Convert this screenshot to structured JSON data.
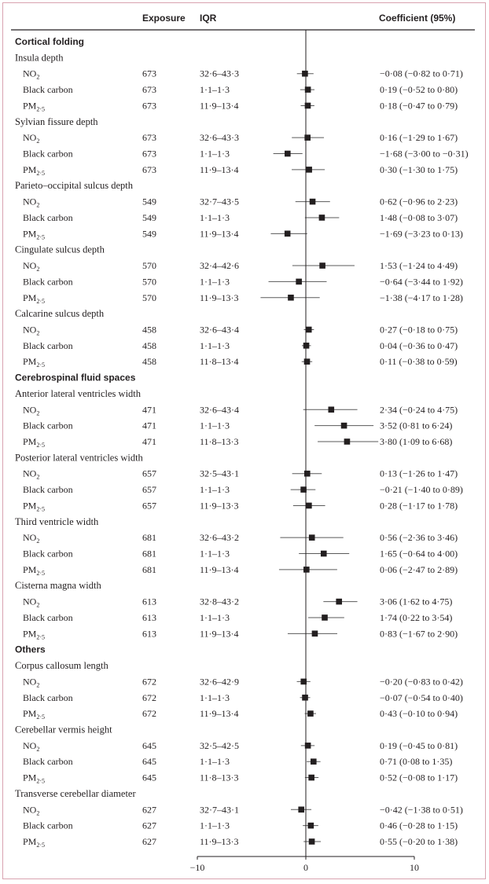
{
  "chart_data": {
    "type": "forest",
    "columns": {
      "exposure": "Exposure",
      "iqr": "IQR",
      "coefficient": "Coefficient (95%)"
    },
    "xlim": [
      -10,
      10
    ],
    "x_ticks": [
      "−10",
      "0",
      "10"
    ],
    "x_tick_values": [
      -10,
      0,
      10
    ],
    "pollutant_labels": {
      "no2": [
        "NO",
        "2"
      ],
      "bc": [
        "Black carbon",
        ""
      ],
      "pm": [
        "PM",
        "2·5"
      ]
    },
    "sections": [
      {
        "title": "Cortical folding",
        "groups": [
          {
            "name": "Insula depth",
            "rows": [
              {
                "p": "no2",
                "n": "673",
                "iqr": "32·6–43·3",
                "est": -0.08,
                "lo": -0.82,
                "hi": 0.71,
                "ci": "−0·08 (−0·82 to 0·71)"
              },
              {
                "p": "bc",
                "n": "673",
                "iqr": "1·1–1·3",
                "est": 0.19,
                "lo": -0.52,
                "hi": 0.8,
                "ci": "0·19 (−0·52 to 0·80)"
              },
              {
                "p": "pm",
                "n": "673",
                "iqr": "11·9–13·4",
                "est": 0.18,
                "lo": -0.47,
                "hi": 0.79,
                "ci": "0·18 (−0·47 to 0·79)"
              }
            ]
          },
          {
            "name": "Sylvian fissure depth",
            "rows": [
              {
                "p": "no2",
                "n": "673",
                "iqr": "32·6–43·3",
                "est": 0.16,
                "lo": -1.29,
                "hi": 1.67,
                "ci": "0·16 (−1·29 to 1·67)"
              },
              {
                "p": "bc",
                "n": "673",
                "iqr": "1·1–1·3",
                "est": -1.68,
                "lo": -3.0,
                "hi": -0.31,
                "ci": "−1·68 (−3·00 to −0·31)"
              },
              {
                "p": "pm",
                "n": "673",
                "iqr": "11·9–13·4",
                "est": 0.3,
                "lo": -1.3,
                "hi": 1.75,
                "ci": "0·30 (−1·30 to 1·75)"
              }
            ]
          },
          {
            "name": "Parieto–occipital sulcus depth",
            "rows": [
              {
                "p": "no2",
                "n": "549",
                "iqr": "32·7–43·5",
                "est": 0.62,
                "lo": -0.96,
                "hi": 2.23,
                "ci": "0·62 (−0·96 to 2·23)"
              },
              {
                "p": "bc",
                "n": "549",
                "iqr": "1·1–1·3",
                "est": 1.48,
                "lo": -0.08,
                "hi": 3.07,
                "ci": "1·48 (−0·08 to 3·07)"
              },
              {
                "p": "pm",
                "n": "549",
                "iqr": "11·9–13·4",
                "est": -1.69,
                "lo": -3.23,
                "hi": 0.13,
                "ci": "−1·69 (−3·23 to 0·13)"
              }
            ]
          },
          {
            "name": "Cingulate sulcus depth",
            "rows": [
              {
                "p": "no2",
                "n": "570",
                "iqr": "32·4–42·6",
                "est": 1.53,
                "lo": -1.24,
                "hi": 4.49,
                "ci": "1·53 (−1·24 to 4·49)"
              },
              {
                "p": "bc",
                "n": "570",
                "iqr": "1·1–1·3",
                "est": -0.64,
                "lo": -3.44,
                "hi": 1.92,
                "ci": "−0·64 (−3·44 to 1·92)"
              },
              {
                "p": "pm",
                "n": "570",
                "iqr": "11·9–13·3",
                "est": -1.38,
                "lo": -4.17,
                "hi": 1.28,
                "ci": "−1·38 (−4·17 to 1·28)"
              }
            ]
          },
          {
            "name": "Calcarine sulcus depth",
            "rows": [
              {
                "p": "no2",
                "n": "458",
                "iqr": "32·6–43·4",
                "est": 0.27,
                "lo": -0.18,
                "hi": 0.75,
                "ci": "0·27 (−0·18 to 0·75)"
              },
              {
                "p": "bc",
                "n": "458",
                "iqr": "1·1–1·3",
                "est": 0.04,
                "lo": -0.36,
                "hi": 0.47,
                "ci": "0·04 (−0·36 to 0·47)"
              },
              {
                "p": "pm",
                "n": "458",
                "iqr": "11·8–13·4",
                "est": 0.11,
                "lo": -0.38,
                "hi": 0.59,
                "ci": "0·11 (−0·38 to 0·59)"
              }
            ]
          }
        ]
      },
      {
        "title": "Cerebrospinal fluid spaces",
        "groups": [
          {
            "name": "Anterior lateral ventricles width",
            "rows": [
              {
                "p": "no2",
                "n": "471",
                "iqr": "32·6–43·4",
                "est": 2.34,
                "lo": -0.24,
                "hi": 4.75,
                "ci": "2·34 (−0·24 to 4·75)"
              },
              {
                "p": "bc",
                "n": "471",
                "iqr": "1·1–1·3",
                "est": 3.52,
                "lo": 0.81,
                "hi": 6.24,
                "ci": "3·52 (0·81 to 6·24)"
              },
              {
                "p": "pm",
                "n": "471",
                "iqr": "11·8–13·3",
                "est": 3.8,
                "lo": 1.09,
                "hi": 6.68,
                "ci": "3·80 (1·09 to 6·68)"
              }
            ]
          },
          {
            "name": "Posterior lateral ventricles width",
            "rows": [
              {
                "p": "no2",
                "n": "657",
                "iqr": "32·5–43·1",
                "est": 0.13,
                "lo": -1.26,
                "hi": 1.47,
                "ci": "0·13 (−1·26 to 1·47)"
              },
              {
                "p": "bc",
                "n": "657",
                "iqr": "1·1–1·3",
                "est": -0.21,
                "lo": -1.4,
                "hi": 0.89,
                "ci": "−0·21 (−1·40 to 0·89)"
              },
              {
                "p": "pm",
                "n": "657",
                "iqr": "11·9–13·3",
                "est": 0.28,
                "lo": -1.17,
                "hi": 1.78,
                "ci": "0·28 (−1·17 to 1·78)"
              }
            ]
          },
          {
            "name": "Third ventricle width",
            "rows": [
              {
                "p": "no2",
                "n": "681",
                "iqr": "32·6–43·2",
                "est": 0.56,
                "lo": -2.36,
                "hi": 3.46,
                "ci": "0·56 (−2·36 to 3·46)"
              },
              {
                "p": "bc",
                "n": "681",
                "iqr": "1·1–1·3",
                "est": 1.65,
                "lo": -0.64,
                "hi": 4.0,
                "ci": "1·65 (−0·64 to 4·00)"
              },
              {
                "p": "pm",
                "n": "681",
                "iqr": "11·9–13·4",
                "est": 0.06,
                "lo": -2.47,
                "hi": 2.89,
                "ci": "0·06 (−2·47 to 2·89)"
              }
            ]
          },
          {
            "name": "Cisterna magna width",
            "rows": [
              {
                "p": "no2",
                "n": "613",
                "iqr": "32·8–43·2",
                "est": 3.06,
                "lo": 1.62,
                "hi": 4.75,
                "ci": "3·06 (1·62 to 4·75)"
              },
              {
                "p": "bc",
                "n": "613",
                "iqr": "1·1–1·3",
                "est": 1.74,
                "lo": 0.22,
                "hi": 3.54,
                "ci": "1·74 (0·22 to 3·54)"
              },
              {
                "p": "pm",
                "n": "613",
                "iqr": "11·9–13·4",
                "est": 0.83,
                "lo": -1.67,
                "hi": 2.9,
                "ci": "0·83 (−1·67 to 2·90)"
              }
            ]
          }
        ]
      },
      {
        "title": "Others",
        "groups": [
          {
            "name": "Corpus callosum length",
            "rows": [
              {
                "p": "no2",
                "n": "672",
                "iqr": "32·6–42·9",
                "est": -0.2,
                "lo": -0.83,
                "hi": 0.42,
                "ci": "−0·20 (−0·83 to 0·42)"
              },
              {
                "p": "bc",
                "n": "672",
                "iqr": "1·1–1·3",
                "est": -0.07,
                "lo": -0.54,
                "hi": 0.4,
                "ci": "−0·07 (−0·54 to 0·40)"
              },
              {
                "p": "pm",
                "n": "672",
                "iqr": "11·9–13·4",
                "est": 0.43,
                "lo": -0.1,
                "hi": 0.94,
                "ci": "0·43 (−0·10 to 0·94)"
              }
            ]
          },
          {
            "name": "Cerebellar vermis height",
            "rows": [
              {
                "p": "no2",
                "n": "645",
                "iqr": "32·5–42·5",
                "est": 0.19,
                "lo": -0.45,
                "hi": 0.81,
                "ci": "0·19 (−0·45 to 0·81)"
              },
              {
                "p": "bc",
                "n": "645",
                "iqr": "1·1–1·3",
                "est": 0.71,
                "lo": 0.08,
                "hi": 1.35,
                "ci": "0·71 (0·08 to 1·35)"
              },
              {
                "p": "pm",
                "n": "645",
                "iqr": "11·8–13·3",
                "est": 0.52,
                "lo": -0.08,
                "hi": 1.17,
                "ci": "0·52 (−0·08 to 1·17)"
              }
            ]
          },
          {
            "name": "Transverse cerebellar diameter",
            "rows": [
              {
                "p": "no2",
                "n": "627",
                "iqr": "32·7–43·1",
                "est": -0.42,
                "lo": -1.38,
                "hi": 0.51,
                "ci": "−0·42 (−1·38 to 0·51)"
              },
              {
                "p": "bc",
                "n": "627",
                "iqr": "1·1–1·3",
                "est": 0.46,
                "lo": -0.28,
                "hi": 1.15,
                "ci": "0·46 (−0·28 to 1·15)"
              },
              {
                "p": "pm",
                "n": "627",
                "iqr": "11·9–13·3",
                "est": 0.55,
                "lo": -0.2,
                "hi": 1.38,
                "ci": "0·55 (−0·20 to 1·38)"
              }
            ]
          }
        ]
      }
    ]
  }
}
